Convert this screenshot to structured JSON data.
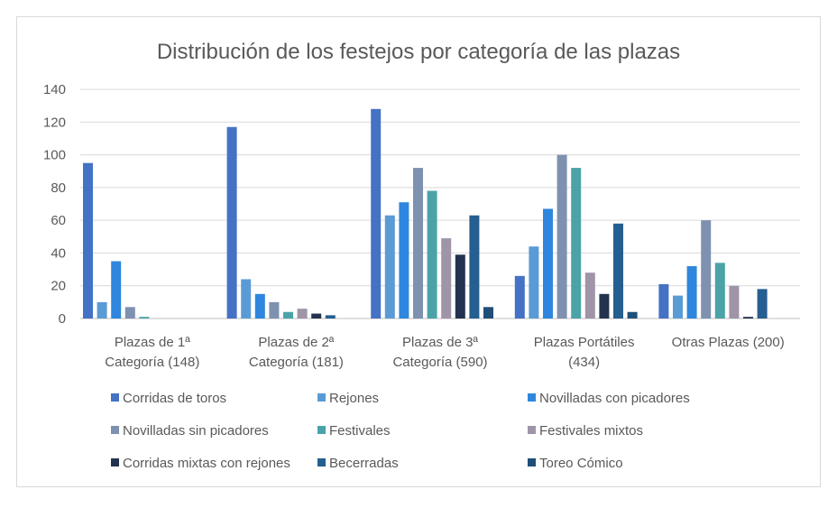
{
  "chart_data": {
    "type": "bar",
    "title": "Distribución de los festejos por categoría de las plazas",
    "xlabel": "",
    "ylabel": "",
    "ylim": [
      0,
      140
    ],
    "yticks": [
      0,
      20,
      40,
      60,
      80,
      100,
      120,
      140
    ],
    "grid": true,
    "legend_position": "bottom",
    "categories": [
      [
        "Plazas de 1ª",
        "Categoría (148)"
      ],
      [
        "Plazas de 2ª",
        "Categoría (181)"
      ],
      [
        "Plazas de 3ª",
        "Categoría (590)"
      ],
      [
        "Plazas Portátiles",
        "(434)"
      ],
      [
        "Otras Plazas (200)"
      ]
    ],
    "series": [
      {
        "name": "Corridas de toros",
        "color": "#4472c4",
        "values": [
          95,
          117,
          128,
          26,
          21
        ]
      },
      {
        "name": "Rejones",
        "color": "#5b9bd5",
        "values": [
          10,
          24,
          63,
          44,
          14
        ]
      },
      {
        "name": "Novilladas con picadores",
        "color": "#2e86de",
        "values": [
          35,
          15,
          71,
          67,
          32
        ]
      },
      {
        "name": "Novilladas sin picadores",
        "color": "#7f91b0",
        "values": [
          7,
          10,
          92,
          100,
          60
        ]
      },
      {
        "name": "Festivales",
        "color": "#4ba3a8",
        "values": [
          1,
          4,
          78,
          92,
          34
        ]
      },
      {
        "name": "Festivales mixtos",
        "color": "#a094a8",
        "values": [
          0,
          6,
          49,
          28,
          20
        ]
      },
      {
        "name": "Corridas mixtas con rejones",
        "color": "#23334f",
        "values": [
          0,
          3,
          39,
          15,
          1
        ]
      },
      {
        "name": "Becerradas",
        "color": "#255e91",
        "values": [
          0,
          2,
          63,
          58,
          18
        ]
      },
      {
        "name": "Toreo Cómico",
        "color": "#1f4e79",
        "values": [
          0,
          0,
          7,
          4,
          0
        ]
      }
    ]
  }
}
